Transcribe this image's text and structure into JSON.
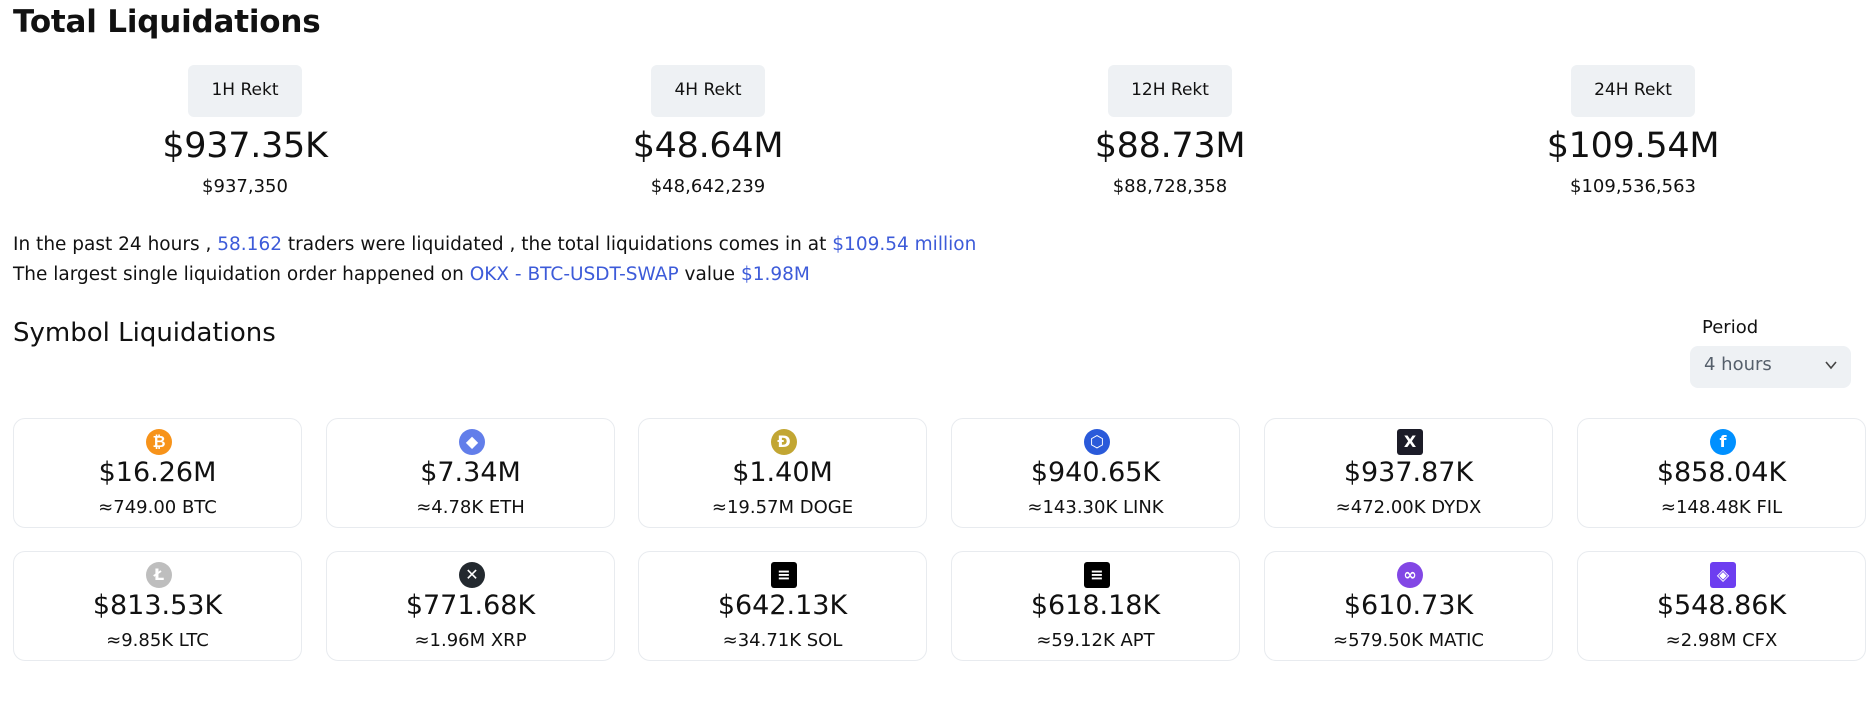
{
  "title": "Total Liquidations",
  "rekt": [
    {
      "label": "1H Rekt",
      "value": "$937.35K",
      "exact": "$937,350"
    },
    {
      "label": "4H Rekt",
      "value": "$48.64M",
      "exact": "$48,642,239"
    },
    {
      "label": "12H Rekt",
      "value": "$88.73M",
      "exact": "$88,728,358"
    },
    {
      "label": "24H Rekt",
      "value": "$109.54M",
      "exact": "$109,536,563"
    }
  ],
  "summary": {
    "line1_pre": "In the past 24 hours ,",
    "traders": "58.162",
    "line1_mid": "traders were liquidated , the total liquidations comes in at",
    "total": "$109.54 million",
    "line2_pre": "The largest single liquidation order happened on",
    "order": "OKX - BTC-USDT-SWAP",
    "line2_mid": "value",
    "order_value": "$1.98M"
  },
  "symbol_title": "Symbol Liquidations",
  "period": {
    "label": "Period",
    "selected": "4 hours"
  },
  "symbols": [
    {
      "icon": "btc-icon",
      "glyph": "₿",
      "color": "#f7931a",
      "value": "$16.26M",
      "amount": "≈749.00 BTC"
    },
    {
      "icon": "eth-icon",
      "glyph": "◆",
      "color": "#627eea",
      "value": "$7.34M",
      "amount": "≈4.78K ETH"
    },
    {
      "icon": "doge-icon",
      "glyph": "Ð",
      "color": "#c2a633",
      "value": "$1.40M",
      "amount": "≈19.57M DOGE"
    },
    {
      "icon": "link-icon",
      "glyph": "⬡",
      "color": "#2a5ada",
      "value": "$940.65K",
      "amount": "≈143.30K LINK"
    },
    {
      "icon": "dydx-icon",
      "glyph": "X",
      "color": "#1c1c28",
      "value": "$937.87K",
      "amount": "≈472.00K DYDX"
    },
    {
      "icon": "fil-icon",
      "glyph": "f",
      "color": "#0090ff",
      "value": "$858.04K",
      "amount": "≈148.48K FIL"
    },
    {
      "icon": "ltc-icon",
      "glyph": "Ł",
      "color": "#bebebe",
      "value": "$813.53K",
      "amount": "≈9.85K LTC"
    },
    {
      "icon": "xrp-icon",
      "glyph": "✕",
      "color": "#23292f",
      "value": "$771.68K",
      "amount": "≈1.96M XRP"
    },
    {
      "icon": "sol-icon",
      "glyph": "≡",
      "color": "#000000",
      "value": "$642.13K",
      "amount": "≈34.71K SOL"
    },
    {
      "icon": "apt-icon",
      "glyph": "≡",
      "color": "#000000",
      "value": "$618.18K",
      "amount": "≈59.12K APT"
    },
    {
      "icon": "matic-icon",
      "glyph": "∞",
      "color": "#8247e5",
      "value": "$610.73K",
      "amount": "≈579.50K MATIC"
    },
    {
      "icon": "cfx-icon",
      "glyph": "◈",
      "color": "#6d3ef0",
      "value": "$548.86K",
      "amount": "≈2.98M CFX"
    }
  ]
}
